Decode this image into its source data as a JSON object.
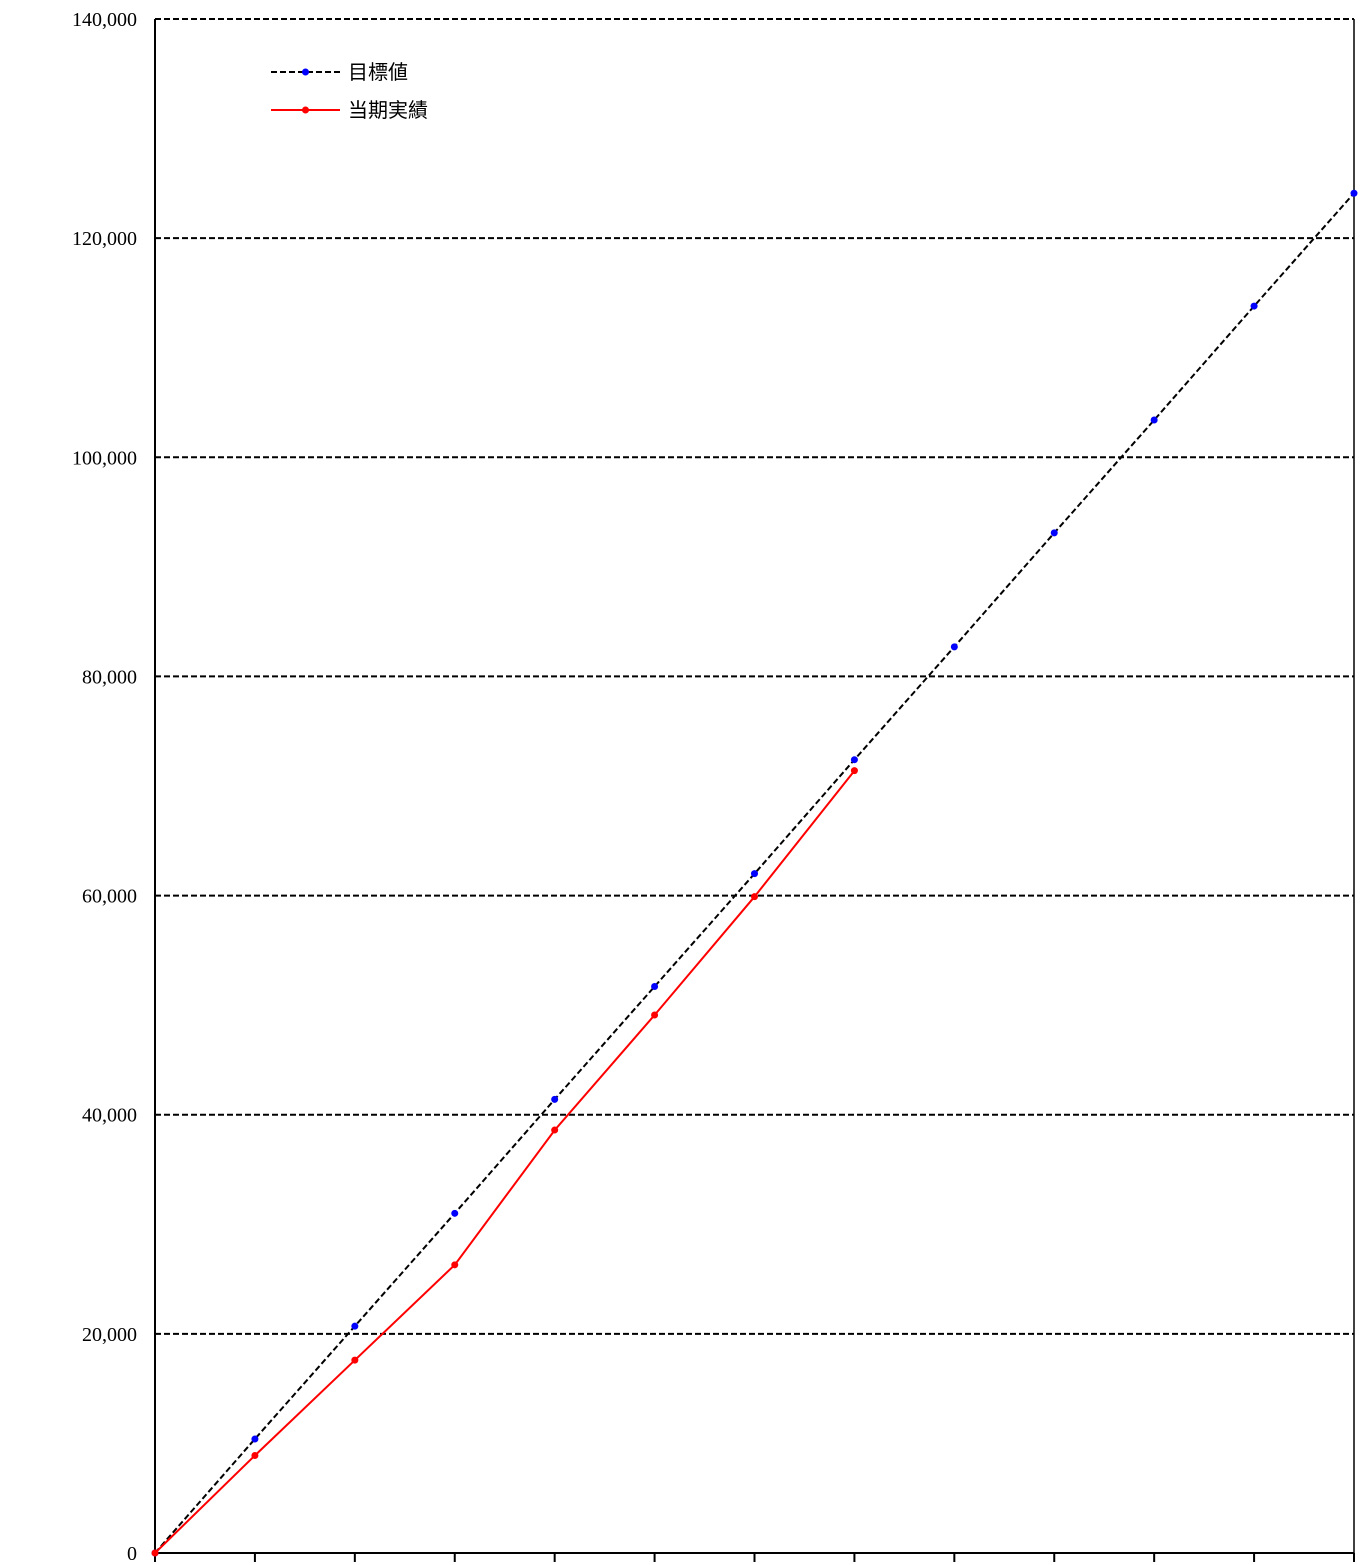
{
  "chart_data": {
    "type": "line",
    "title": "",
    "xlabel": "",
    "ylabel": "",
    "ylim": [
      0,
      140000
    ],
    "yticks": [
      0,
      20000,
      40000,
      60000,
      80000,
      100000,
      120000,
      140000
    ],
    "ytick_labels": [
      "0",
      "20,000",
      "40,000",
      "60,000",
      "80,000",
      "100,000",
      "120,000",
      "140,000"
    ],
    "x": [
      0,
      1,
      2,
      3,
      4,
      5,
      6,
      7,
      8,
      9,
      10,
      11,
      12
    ],
    "grid": true,
    "legend_position": "top-left",
    "series": [
      {
        "name": "目標値",
        "style": "dashed",
        "line_color": "#000000",
        "marker_color": "#0000ff",
        "values": [
          0,
          10400,
          20700,
          31000,
          41400,
          51700,
          62000,
          72400,
          82700,
          93100,
          103400,
          113800,
          124100
        ]
      },
      {
        "name": "当期実績",
        "style": "solid",
        "line_color": "#ff0000",
        "marker_color": "#ff0000",
        "values": [
          0,
          8900,
          17600,
          26300,
          38600,
          49100,
          59900,
          71400,
          null,
          null,
          null,
          null,
          null
        ]
      }
    ]
  }
}
